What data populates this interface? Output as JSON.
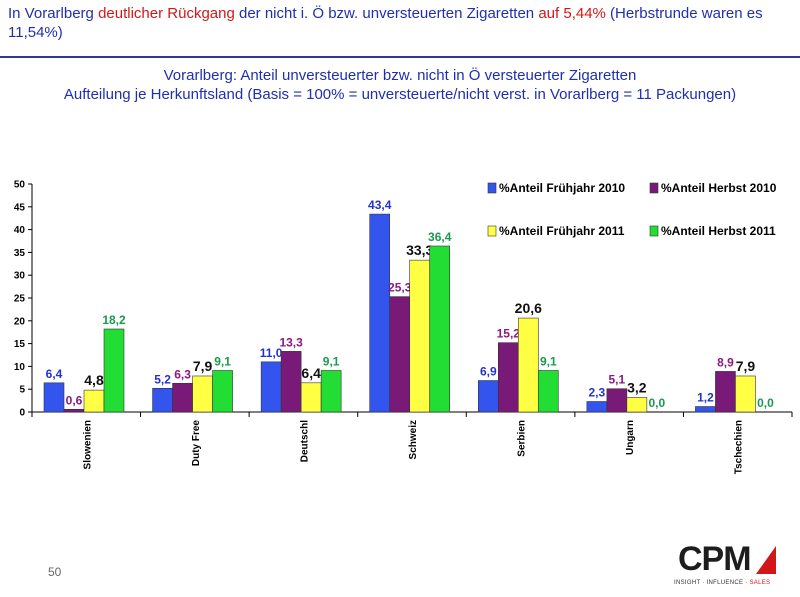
{
  "header": {
    "part1": "In Vorarlberg ",
    "highlight1": "deutlicher Rückgang",
    "part2": " der nicht i. Ö bzw. unversteuerten Zigaretten ",
    "highlight2": "auf 5,44%",
    "part3": " (Herbstrunde waren es 11,54%)"
  },
  "chart_title_line1": "Vorarlberg: Anteil unversteuerter bzw. nicht in Ö versteuerter Zigaretten",
  "chart_title_line2": "Aufteilung je Herkunftsland (Basis = 100% = unversteuerte/nicht verst. in Vorarlberg = 11 Packungen)",
  "page_number": "50",
  "logo": {
    "text": "CPM",
    "tagline_main": "INSIGHT · INFLUENCE · ",
    "tagline_accent": "SALES"
  },
  "colors": {
    "blue": "#3355ee",
    "purple": "#7a1a78",
    "yellow": "#ffff44",
    "green": "#22dd33"
  },
  "chart_data": {
    "type": "bar",
    "categories": [
      "Slowenien",
      "Duty Free",
      "Deutschl",
      "Schweiz",
      "Serbien",
      "Ungarn",
      "Tschechien"
    ],
    "series": [
      {
        "name": "%Anteil Frühjahr 2010",
        "color": "#3355ee",
        "label_color": "#2233cc",
        "values": [
          6.4,
          5.2,
          11.0,
          43.4,
          6.9,
          2.3,
          1.2
        ],
        "labels": [
          "6,4",
          "5,2",
          "11,0",
          "43,4",
          "6,9",
          "2,3",
          "1,2"
        ]
      },
      {
        "name": "%Anteil Herbst 2010",
        "color": "#7a1a78",
        "label_color": "#8a1a80",
        "values": [
          0.6,
          6.3,
          13.3,
          25.3,
          15.2,
          5.1,
          8.9
        ],
        "labels": [
          "0,6",
          "6,3",
          "13,3",
          "25,3",
          "15,2",
          "5,1",
          "8,9"
        ]
      },
      {
        "name": "%Anteil Frühjahr 2011",
        "color": "#ffff44",
        "label_color": "#111111",
        "values": [
          4.8,
          7.9,
          6.4,
          33.3,
          20.6,
          3.2,
          7.9
        ],
        "labels": [
          "4,8",
          "7,9",
          "6,4",
          "33,3",
          "20,6",
          "3,2",
          "7,9"
        ]
      },
      {
        "name": "%Anteil Herbst 2011",
        "color": "#22dd33",
        "label_color": "#1a9a50",
        "values": [
          18.2,
          9.1,
          9.1,
          36.4,
          9.1,
          0.0,
          0.0
        ],
        "labels": [
          "18,2",
          "9,1",
          "9,1",
          "36,4",
          "9,1",
          "0,0",
          "0,0"
        ]
      }
    ],
    "y_ticks": [
      "0",
      "5",
      "10",
      "15",
      "20",
      "25",
      "30",
      "35",
      "40",
      "45",
      "50"
    ],
    "ylim": [
      0,
      50
    ],
    "grid": false,
    "legend_position": "top-right"
  }
}
